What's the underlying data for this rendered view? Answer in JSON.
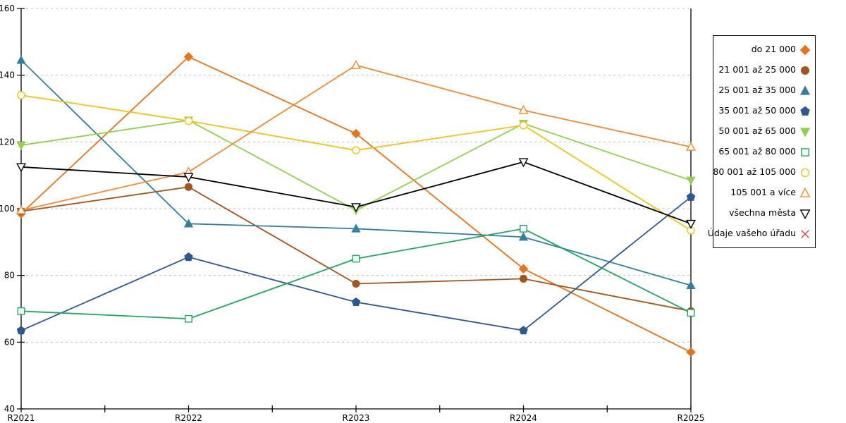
{
  "chart_data": {
    "type": "line",
    "title": "",
    "xlabel": "",
    "ylabel": "",
    "categories": [
      "R2021",
      "R2022",
      "R2023",
      "R2024",
      "R2025"
    ],
    "ylim": [
      40,
      160
    ],
    "ytick_step": 20,
    "yticks": [
      40,
      60,
      80,
      100,
      120,
      140,
      160
    ],
    "grid": "horizontal-dashed",
    "legend_position": "right-outside",
    "axis_color": "#000000",
    "grid_color": "#bdbdbd",
    "series": [
      {
        "name": "do 21 000",
        "color": "#e8731a",
        "marker": "diamond",
        "fill": "solid",
        "values": [
          98.5,
          145.5,
          122.5,
          82,
          57
        ]
      },
      {
        "name": "21 001 až 25 000",
        "color": "#a4541e",
        "marker": "circle",
        "fill": "solid",
        "values": [
          99.2,
          106.5,
          77.5,
          79,
          69.3
        ]
      },
      {
        "name": "25 001 až 35 000",
        "color": "#33809e",
        "marker": "triangle-up",
        "fill": "solid",
        "values": [
          144.5,
          95.5,
          94,
          91.5,
          77
        ]
      },
      {
        "name": "35 001 až 50 000",
        "color": "#2e5890",
        "marker": "pentagon",
        "fill": "solid",
        "values": [
          63.5,
          85.5,
          72,
          63.5,
          103.5
        ]
      },
      {
        "name": "50 001 až 65 000",
        "color": "#92d050",
        "marker": "triangle-down",
        "fill": "solid",
        "values": [
          119,
          126.5,
          99.5,
          125.5,
          108.5
        ]
      },
      {
        "name": "65 001 až 80 000",
        "color": "#1fa85f",
        "marker": "square",
        "fill": "open",
        "values": [
          69.3,
          67,
          85,
          94,
          68.8
        ]
      },
      {
        "name": "80 001 až 105 000",
        "color": "#f2c314",
        "marker": "circle",
        "fill": "open",
        "values": [
          134,
          126.3,
          117.5,
          125,
          93.5
        ]
      },
      {
        "name": "105 001 a více",
        "color": "#f18a34",
        "marker": "triangle-up",
        "fill": "open",
        "values": [
          99.5,
          111,
          143,
          129.5,
          118.5
        ]
      },
      {
        "name": "všechna města",
        "color": "#000000",
        "marker": "triangle-down",
        "fill": "open",
        "values": [
          112.5,
          109.5,
          100.5,
          114,
          95.5
        ]
      },
      {
        "name": "Údaje vašeho úřadu",
        "color": "#d94040",
        "marker": "x",
        "fill": "open",
        "values": []
      }
    ]
  }
}
